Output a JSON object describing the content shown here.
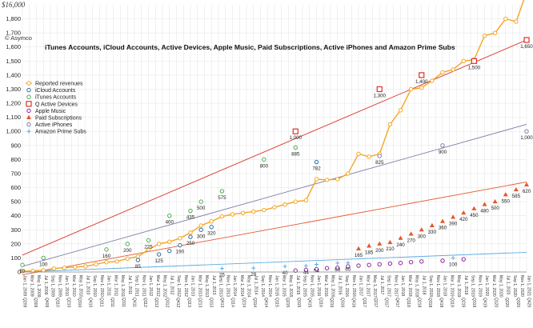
{
  "chart_data": {
    "type": "line",
    "title": "iTunes Accounts, iCloud Accounts, Active Devices, Apple Music, Paid Subscriptions, Active iPhones and Amazon Prime Subs",
    "copyright": "© Asymco",
    "top_value_label": "$16,000",
    "ylim": [
      0,
      1900
    ],
    "yticks": [
      0,
      100,
      200,
      300,
      400,
      500,
      600,
      700,
      800,
      900,
      1000,
      1100,
      1200,
      1300,
      1400,
      1500,
      1600,
      1700,
      1800
    ],
    "ytick_labels": [
      "0",
      "100",
      "200",
      "300",
      "400",
      "500",
      "600",
      "700",
      "800",
      "900",
      "1,000",
      "1,100",
      "1,200",
      "1,300",
      "1,400",
      "1,500",
      "1,600",
      "1,700",
      "1,800"
    ],
    "quarter_labels": [
      "Q209",
      "Q309",
      "Q409",
      "Q110",
      "Q210",
      "Q310",
      "Q410",
      "Q111",
      "Q211",
      "Q311",
      "Q411",
      "Q112",
      "Q212",
      "Q312",
      "Q412",
      "Q113",
      "Q213",
      "Q313",
      "Q413",
      "Q114",
      "Q214",
      "Q314",
      "Q414",
      "Q115",
      "Q215",
      "Q315",
      "Q415",
      "Q116",
      "Q216",
      "Q316",
      "Q416",
      "Q117",
      "Q217",
      "Q317",
      "Q417",
      "Q118",
      "Q218",
      "Q318",
      "Q418",
      "Q119",
      "Q219",
      "Q319",
      "Q419",
      "Q120",
      "Q220",
      "Q320",
      "Q420"
    ],
    "month_labels": [
      "Jan 1, 2009",
      "Mar 1, 2009",
      "May 1, 2009",
      "Jul 1, 2009",
      "Sep 1, 2009",
      "Nov 1, 2009",
      "Jan 1, 2010",
      "Mar 1, 2010",
      "May 1, 2010",
      "Jul 1, 2010",
      "Sep 1, 2010",
      "Nov 1, 2010",
      "Jan 1, 2011",
      "Mar 1, 2011",
      "May 1, 2011",
      "Jul 1, 2011",
      "Sep 1, 2011",
      "Nov 1, 2011",
      "Jan 1, 2012",
      "Mar 1, 2012",
      "May 1, 2012",
      "Jul 1, 2012",
      "Sep 1, 2012",
      "Nov 1, 2012",
      "Jan 1, 2013",
      "Mar 1, 2013",
      "May 1, 2013",
      "Jul 1, 2013",
      "Sep 1, 2013",
      "Nov 1, 2013",
      "Jan 1, 2014",
      "Mar 1, 2014",
      "May 1, 2014",
      "Jul 1, 2014",
      "Sep 1, 2014",
      "Nov 1, 2014",
      "Jan 1, 2015",
      "Mar 1, 2015",
      "May 1, 2015",
      "Jul 1, 2015",
      "Sep 1, 2015",
      "Nov 1, 2015",
      "Jan 1, 2016",
      "Mar 1, 2016",
      "May 1, 2016",
      "Jul 1, 2016",
      "Sep 1, 2016",
      "Nov 1, 2016",
      "Jan 1, 2017",
      "Mar 1, 2017",
      "May 1, 2017",
      "Jul 1, 2017",
      "Sep 1, 2017",
      "Nov 1, 2017",
      "Jan 1, 2018",
      "Mar 1, 2018",
      "May 1, 2018",
      "Jul 1, 2018",
      "Sep 1, 2018",
      "Nov 1, 2018",
      "Jan 1, 2019",
      "Mar 1, 2019",
      "May 1, 2019",
      "Jul 1, 2019",
      "Sep 1, 2019",
      "Nov 1, 2019",
      "Jan 1, 2020",
      "Mar 1, 2020",
      "May 1, 2020",
      "Jul 1, 2020",
      "Sep 1, 2020",
      "Nov 1, 2020",
      "Jan 1, 2021"
    ],
    "legend": {
      "placement": "left",
      "entries": [
        "Reported revenues",
        "iCloud Accounts",
        "iTunes Accounts",
        "Q Active Devices",
        "Apple Music",
        "Paid Subscriptions",
        "Active iPhones",
        "Amazon Prime Subs"
      ]
    },
    "series": [
      {
        "name": "Reported revenues",
        "color": "#f5a623",
        "marker": "circle-hollow",
        "line": true,
        "x": [
          2009.0,
          2009.25,
          2009.5,
          2009.75,
          2010.0,
          2010.25,
          2010.5,
          2010.75,
          2011.0,
          2011.25,
          2011.5,
          2011.75,
          2012.0,
          2012.25,
          2012.5,
          2012.75,
          2013.0,
          2013.25,
          2013.5,
          2013.75,
          2014.0,
          2014.25,
          2014.5,
          2014.75,
          2015.0,
          2015.25,
          2015.5,
          2015.75,
          2016.0,
          2016.25,
          2016.5,
          2016.75,
          2017.0,
          2017.25,
          2017.5,
          2017.75,
          2018.0,
          2018.25,
          2018.5,
          2018.75,
          2019.0,
          2019.25,
          2019.5,
          2019.75,
          2020.0,
          2020.25,
          2020.5,
          2020.75,
          2021.0
        ],
        "y": [
          5,
          8,
          12,
          25,
          30,
          35,
          40,
          55,
          70,
          75,
          95,
          110,
          160,
          200,
          215,
          240,
          280,
          330,
          360,
          395,
          410,
          420,
          430,
          440,
          460,
          480,
          500,
          510,
          660,
          655,
          660,
          700,
          840,
          820,
          840,
          1050,
          1150,
          1300,
          1310,
          1360,
          1420,
          1440,
          1500,
          1510,
          1680,
          1700,
          1800,
          1780,
          1990
        ]
      },
      {
        "name": "iCloud Accounts",
        "color": "#2e6da4",
        "marker": "circle-hollow",
        "line": false,
        "x": [
          2011.75,
          2012.25,
          2012.5,
          2012.75,
          2013.0,
          2013.25,
          2013.5,
          2016.0
        ],
        "y": [
          85,
          125,
          150,
          190,
          250,
          300,
          320,
          782
        ],
        "labels": [
          "85",
          "125",
          "",
          "190",
          "250",
          "300",
          "320",
          "782"
        ]
      },
      {
        "name": "iTunes Accounts",
        "color": "#4caf50",
        "marker": "circle-hollow",
        "line": false,
        "x": [
          2009.0,
          2009.5,
          2011.0,
          2011.5,
          2012.0,
          2012.5,
          2013.0,
          2013.25,
          2013.75,
          2014.75,
          2015.5
        ],
        "y": [
          50,
          100,
          160,
          200,
          225,
          400,
          435,
          500,
          575,
          800,
          885
        ],
        "labels": [
          "50",
          "100",
          "160",
          "200",
          "225",
          "400",
          "435",
          "500",
          "575",
          "800",
          "885"
        ]
      },
      {
        "name": "Q Active Devices",
        "color": "#d9342b",
        "marker": "square-hollow",
        "line": false,
        "x": [
          2015.5,
          2017.5,
          2018.5,
          2019.75,
          2021.0
        ],
        "y": [
          1000,
          1300,
          1400,
          1500,
          1650
        ],
        "labels": [
          "1,000",
          "1,300",
          "1,400",
          "1,500",
          "1,650"
        ]
      },
      {
        "name": "Apple Music",
        "color": "#8e24aa",
        "marker": "circle-hollow",
        "line": false,
        "x": [
          2015.5,
          2015.75,
          2016.0,
          2016.25,
          2016.5,
          2016.75,
          2017.0,
          2017.25,
          2017.5,
          2017.75,
          2018.0,
          2018.25,
          2018.5,
          2019.0,
          2019.5
        ],
        "y": [
          10,
          15,
          20,
          27,
          30,
          40,
          45,
          50,
          55,
          60,
          64,
          70,
          75,
          80,
          90
        ],
        "labels": []
      },
      {
        "name": "Paid Subscriptions",
        "color": "#e4572e",
        "marker": "triangle",
        "line": false,
        "x": [
          2017.0,
          2017.25,
          2017.5,
          2017.75,
          2018.0,
          2018.25,
          2018.5,
          2018.75,
          2019.0,
          2019.25,
          2019.5,
          2019.75,
          2020.0,
          2020.25,
          2020.5,
          2020.75,
          2021.0
        ],
        "y": [
          165,
          185,
          200,
          210,
          240,
          270,
          300,
          330,
          360,
          390,
          420,
          450,
          480,
          500,
          550,
          585,
          620
        ],
        "labels": [
          "165",
          "185",
          "200",
          "210",
          "240",
          "270",
          "300",
          "330",
          "360",
          "390",
          "420",
          "450",
          "480",
          "500",
          "550",
          "585",
          "620"
        ]
      },
      {
        "name": "Active iPhones",
        "color": "#7b7fa8",
        "marker": "circle-hollow",
        "line": false,
        "x": [
          2017.5,
          2019.0,
          2021.0
        ],
        "y": [
          825,
          900,
          1000
        ],
        "labels": [
          "825",
          "900",
          "1,000"
        ]
      },
      {
        "name": "Amazon Prime Subs",
        "color": "#5dade2",
        "marker": "plus",
        "line": false,
        "x": [
          2013.75,
          2014.5,
          2015.25,
          2015.75,
          2016.0,
          2016.5,
          2016.75,
          2019.25
        ],
        "y": [
          25,
          28,
          40,
          44,
          54,
          63,
          65,
          100
        ],
        "labels": [
          "25",
          "28",
          "40",
          "44",
          "54",
          "63",
          "65",
          "100"
        ]
      }
    ],
    "trendlines": [
      {
        "color": "#d9342b",
        "from": {
          "x": 2009.0,
          "y": 120
        },
        "to": {
          "x": 2021.0,
          "y": 1650
        }
      },
      {
        "color": "#7b7fa8",
        "from": {
          "x": 2009.0,
          "y": 40
        },
        "to": {
          "x": 2021.0,
          "y": 1050
        }
      },
      {
        "color": "#e4572e",
        "from": {
          "x": 2009.0,
          "y": -20
        },
        "to": {
          "x": 2021.0,
          "y": 640
        }
      },
      {
        "color": "#5dade2",
        "from": {
          "x": 2009.0,
          "y": 0
        },
        "to": {
          "x": 2021.0,
          "y": 140
        }
      }
    ],
    "grid": true
  }
}
